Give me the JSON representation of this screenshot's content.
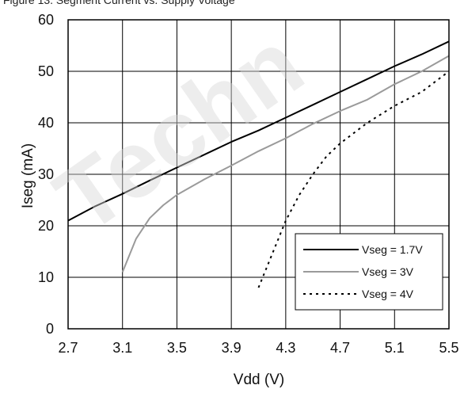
{
  "caption": "Figure 13. Segment Current vs. Supply Voltage",
  "watermark": "Techn",
  "chart_data": {
    "type": "line",
    "title": "",
    "xlabel": "Vdd (V)",
    "ylabel": "Iseg (mA)",
    "xlim": [
      2.7,
      5.5
    ],
    "ylim": [
      0,
      60
    ],
    "x_ticks": [
      "2.7",
      "3.1",
      "3.5",
      "3.9",
      "4.3",
      "4.7",
      "5.1",
      "5.5"
    ],
    "y_ticks": [
      "0",
      "10",
      "20",
      "30",
      "40",
      "50",
      "60"
    ],
    "grid": true,
    "legend_position": "bottom-right",
    "series": [
      {
        "name": "Vseg = 1.7V",
        "color": "#000000",
        "dash": "solid",
        "x": [
          2.7,
          2.9,
          3.1,
          3.3,
          3.5,
          3.7,
          3.9,
          4.1,
          4.3,
          4.5,
          4.7,
          4.9,
          5.1,
          5.3,
          5.5
        ],
        "y": [
          21,
          23.8,
          26.2,
          28.8,
          31.3,
          33.8,
          36.3,
          38.5,
          41,
          43.5,
          46,
          48.5,
          51,
          53.3,
          55.8
        ]
      },
      {
        "name": "Vseg = 3V",
        "color": "#9a9a9a",
        "dash": "solid",
        "x": [
          3.1,
          3.2,
          3.3,
          3.4,
          3.5,
          3.6,
          3.7,
          3.9,
          4.1,
          4.3,
          4.5,
          4.7,
          4.9,
          5.1,
          5.3,
          5.5
        ],
        "y": [
          11,
          17.5,
          21.5,
          24,
          26,
          27.5,
          29,
          31.7,
          34.5,
          37,
          39.8,
          42.3,
          44.5,
          47.5,
          50,
          53
        ]
      },
      {
        "name": "Vseg = 4V",
        "color": "#000000",
        "dash": "dotted",
        "x": [
          4.1,
          4.2,
          4.3,
          4.4,
          4.5,
          4.6,
          4.7,
          4.9,
          5.1,
          5.3,
          5.5
        ],
        "y": [
          8,
          14.5,
          21,
          26,
          30,
          33.5,
          36,
          40,
          43.3,
          46,
          50
        ]
      }
    ]
  }
}
